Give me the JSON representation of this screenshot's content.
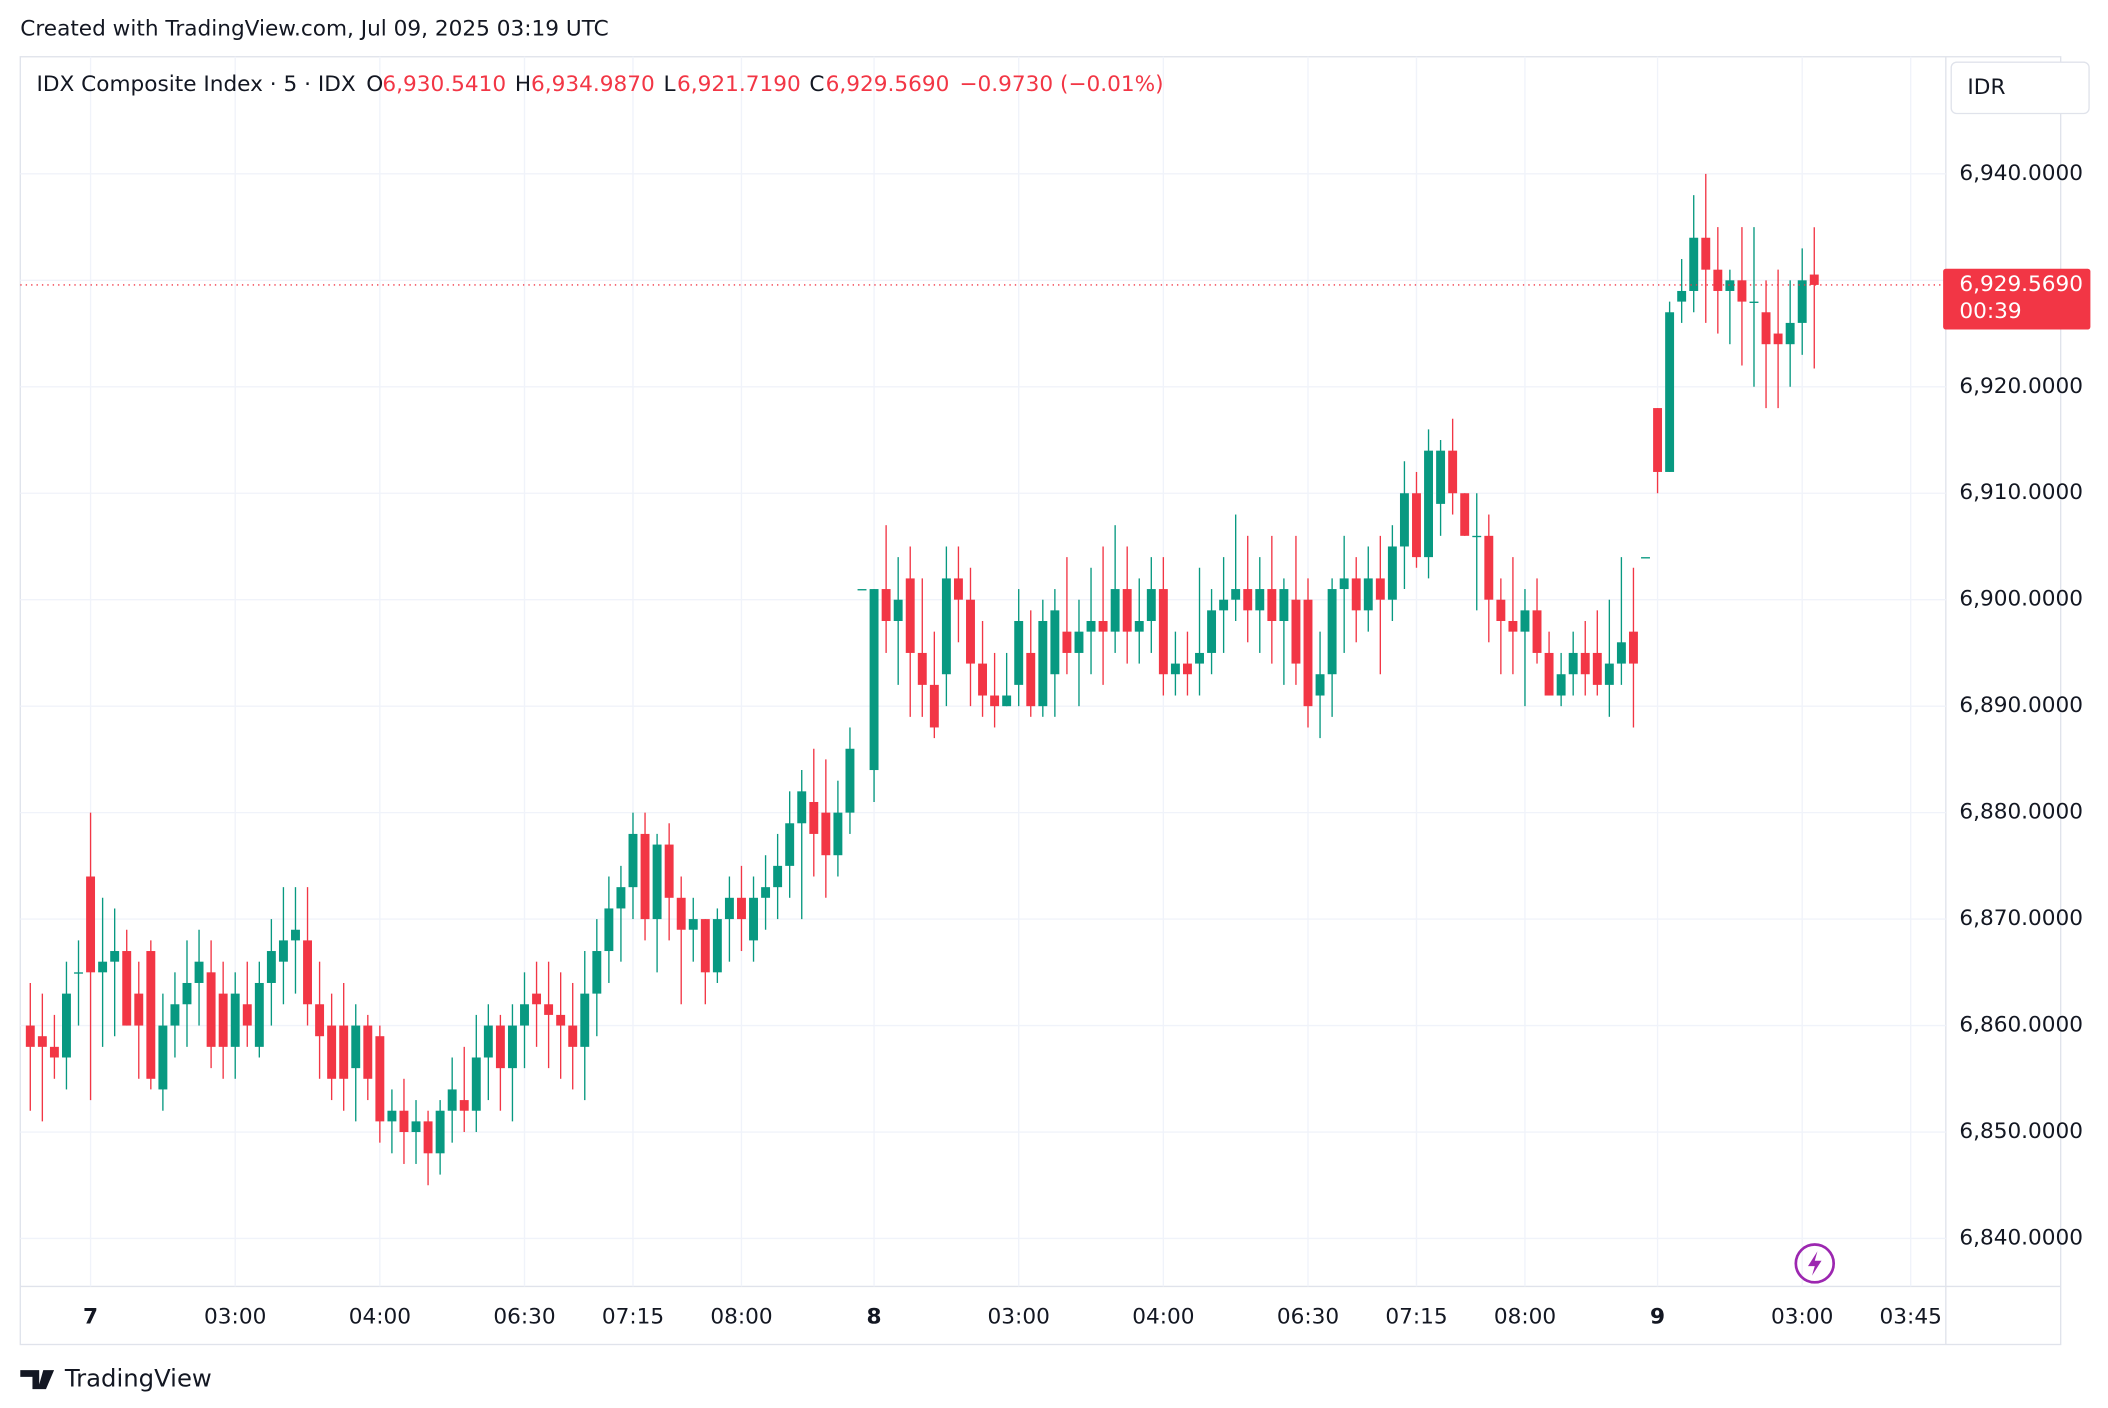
{
  "note": "Created with TradingView.com, Jul 09, 2025 03:19 UTC",
  "brand": "TradingView",
  "currency": "IDR",
  "chart_data": {
    "type": "candlestick",
    "title": "IDX Composite Index · 5 · IDX",
    "legend": {
      "o_label": "O",
      "open": "6,930.5410",
      "h_label": "H",
      "high": "6,934.9870",
      "l_label": "L",
      "low": "6,921.7190",
      "c_label": "C",
      "close": "6,929.5690",
      "change": "−0.9730 (−0.01%)"
    },
    "last_price_label": "6,929.5690",
    "countdown": "00:39",
    "up_color": "#089981",
    "down_color": "#f23645",
    "grid": true,
    "ylim": [
      6835.5,
      6951
    ],
    "yticks": [
      {
        "value": 6840,
        "label": "6,840.0000"
      },
      {
        "value": 6850,
        "label": "6,850.0000"
      },
      {
        "value": 6860,
        "label": "6,860.0000"
      },
      {
        "value": 6870,
        "label": "6,870.0000"
      },
      {
        "value": 6880,
        "label": "6,880.0000"
      },
      {
        "value": 6890,
        "label": "6,890.0000"
      },
      {
        "value": 6900,
        "label": "6,900.0000"
      },
      {
        "value": 6910,
        "label": "6,910.0000"
      },
      {
        "value": 6920,
        "label": "6,920.0000"
      },
      {
        "value": 6930,
        "label": "6,930.0000"
      },
      {
        "value": 6940,
        "label": "6,940.0000"
      }
    ],
    "categories": [
      null,
      null,
      null,
      null,
      null,
      "7",
      null,
      null,
      null,
      null,
      null,
      null,
      null,
      null,
      null,
      null,
      null,
      "03:00",
      null,
      null,
      null,
      null,
      null,
      null,
      null,
      null,
      null,
      null,
      null,
      "04:00",
      null,
      null,
      null,
      null,
      null,
      null,
      null,
      null,
      null,
      null,
      null,
      "06:30",
      null,
      null,
      null,
      null,
      null,
      null,
      null,
      null,
      "07:15",
      null,
      null,
      null,
      null,
      null,
      null,
      null,
      null,
      "08:00",
      null,
      null,
      null,
      null,
      null,
      null,
      null,
      null,
      null,
      null,
      "8",
      null,
      null,
      null,
      null,
      null,
      null,
      null,
      null,
      null,
      null,
      null,
      "03:00",
      null,
      null,
      null,
      null,
      null,
      null,
      null,
      null,
      null,
      null,
      null,
      "04:00",
      null,
      null,
      null,
      null,
      null,
      null,
      null,
      null,
      null,
      null,
      null,
      "06:30",
      null,
      null,
      null,
      null,
      null,
      null,
      null,
      null,
      "07:15",
      null,
      null,
      null,
      null,
      null,
      null,
      null,
      null,
      "08:00",
      null,
      null,
      null,
      null,
      null,
      null,
      null,
      null,
      null,
      null,
      "9",
      null,
      null,
      null,
      null,
      null,
      null,
      null,
      null,
      null,
      null,
      null,
      "03:00",
      null,
      null,
      null,
      null,
      null,
      null,
      null,
      null,
      "03:45"
    ],
    "open": [
      6860,
      6859,
      6858,
      6857,
      6865,
      6874,
      6865,
      6866,
      6867,
      6863,
      6867,
      6854,
      6860,
      6862,
      6864,
      6865,
      6863,
      6858,
      6862,
      6858,
      6864,
      6866,
      6868,
      6868,
      6862,
      6860,
      6860,
      6856,
      6860,
      6859,
      6851,
      6852,
      6850,
      6851,
      6848,
      6852,
      6853,
      6852,
      6857,
      6860,
      6856,
      6860,
      6863,
      6862,
      6861,
      6860,
      6858,
      6863,
      6867,
      6871,
      6873,
      6878,
      6870,
      6877,
      6872,
      6869,
      6870,
      6865,
      6870,
      6872,
      6868,
      6872,
      6873,
      6875,
      6879,
      6881,
      6880,
      6876,
      6880,
      6901,
      6884,
      6901,
      6898,
      6902,
      6895,
      6892,
      6893,
      6902,
      6900,
      6894,
      6891,
      6890,
      6892,
      6895,
      6890,
      6893,
      6897,
      6895,
      6897,
      6898,
      6897,
      6901,
      6897,
      6898,
      6901,
      6893,
      6894,
      6894,
      6895,
      6899,
      6900,
      6901,
      6899,
      6901,
      6898,
      6900,
      6900,
      6891,
      6893,
      6901,
      6902,
      6899,
      6902,
      6900,
      6905,
      6910,
      6904,
      6909,
      6914,
      6910,
      6906,
      6906,
      6900,
      6898,
      6897,
      6899,
      6895,
      6891,
      6893,
      6895,
      6895,
      6892,
      6894,
      6897,
      6904,
      6918,
      6912,
      6928,
      6929,
      6934,
      6931,
      6929,
      6930,
      6928,
      6927,
      6925,
      6924,
      6926,
      6930.541,
      null,
      null,
      null,
      null,
      null,
      null,
      null,
      null
    ],
    "high": [
      6864,
      6863,
      6861,
      6866,
      6868,
      6880,
      6872,
      6871,
      6869,
      6866,
      6868,
      6863,
      6865,
      6868,
      6869,
      6868,
      6866,
      6865,
      6866,
      6866,
      6870,
      6873,
      6873,
      6873,
      6866,
      6863,
      6864,
      6862,
      6861,
      6860,
      6854,
      6855,
      6853,
      6852,
      6853,
      6857,
      6858,
      6861,
      6862,
      6861,
      6862,
      6865,
      6866,
      6866,
      6865,
      6864,
      6867,
      6870,
      6874,
      6875,
      6880,
      6880,
      6878,
      6879,
      6874,
      6872,
      6870,
      6871,
      6874,
      6875,
      6874,
      6876,
      6878,
      6882,
      6884,
      6886,
      6885,
      6883,
      6888,
      6901,
      6901,
      6907,
      6904,
      6905,
      6902,
      6897,
      6905,
      6905,
      6903,
      6898,
      6895,
      6895,
      6901,
      6899,
      6900,
      6901,
      6904,
      6900,
      6903,
      6905,
      6907,
      6905,
      6902,
      6904,
      6904,
      6897,
      6897,
      6903,
      6901,
      6904,
      6908,
      6906,
      6904,
      6906,
      6902,
      6906,
      6902,
      6897,
      6902,
      6906,
      6904,
      6905,
      6906,
      6907,
      6913,
      6912,
      6916,
      6915,
      6917,
      6910,
      6910,
      6908,
      6902,
      6904,
      6901,
      6902,
      6897,
      6895,
      6897,
      6898,
      6899,
      6900,
      6904,
      6903,
      6904,
      6918,
      6928,
      6932,
      6938,
      6940,
      6935,
      6931,
      6935,
      6935,
      6930,
      6931,
      6930,
      6933,
      6934.987,
      null,
      null,
      null,
      null,
      null,
      null,
      null,
      null
    ],
    "low": [
      6852,
      6851,
      6855,
      6854,
      6860,
      6853,
      6858,
      6859,
      6860,
      6855,
      6854,
      6852,
      6857,
      6858,
      6860,
      6856,
      6855,
      6855,
      6858,
      6857,
      6860,
      6862,
      6863,
      6860,
      6855,
      6853,
      6852,
      6851,
      6853,
      6849,
      6848,
      6847,
      6847,
      6845,
      6846,
      6849,
      6850,
      6850,
      6853,
      6852,
      6851,
      6856,
      6858,
      6856,
      6855,
      6854,
      6853,
      6859,
      6864,
      6866,
      6870,
      6868,
      6865,
      6868,
      6862,
      6866,
      6862,
      6864,
      6866,
      6867,
      6866,
      6869,
      6870,
      6872,
      6870,
      6874,
      6872,
      6874,
      6878,
      6901,
      6881,
      6895,
      6892,
      6889,
      6889,
      6887,
      6890,
      6896,
      6890,
      6889,
      6888,
      6890,
      6890,
      6889,
      6889,
      6889,
      6893,
      6890,
      6893,
      6892,
      6895,
      6894,
      6894,
      6895,
      6891,
      6891,
      6891,
      6891,
      6893,
      6895,
      6898,
      6896,
      6895,
      6894,
      6892,
      6892,
      6888,
      6887,
      6889,
      6895,
      6896,
      6897,
      6893,
      6898,
      6901,
      6903,
      6902,
      6906,
      6908,
      6906,
      6899,
      6896,
      6893,
      6893,
      6890,
      6894,
      6891,
      6890,
      6891,
      6891,
      6891,
      6889,
      6892,
      6888,
      6904,
      6910,
      6912,
      6926,
      6927,
      6926,
      6925,
      6924,
      6922,
      6920,
      6918,
      6918,
      6920,
      6923,
      6921.719,
      null,
      null,
      null,
      null,
      null,
      null,
      null,
      null
    ],
    "close": [
      6858,
      6858,
      6857,
      6863,
      6865,
      6865,
      6866,
      6867,
      6860,
      6860,
      6855,
      6860,
      6862,
      6864,
      6866,
      6858,
      6858,
      6863,
      6860,
      6864,
      6867,
      6868,
      6869,
      6862,
      6859,
      6855,
      6855,
      6860,
      6855,
      6851,
      6852,
      6850,
      6851,
      6848,
      6852,
      6854,
      6852,
      6857,
      6860,
      6856,
      6860,
      6862,
      6862,
      6861,
      6860,
      6858,
      6863,
      6867,
      6871,
      6873,
      6878,
      6870,
      6877,
      6872,
      6869,
      6870,
      6865,
      6870,
      6872,
      6870,
      6872,
      6873,
      6875,
      6879,
      6882,
      6878,
      6876,
      6880,
      6886,
      6901,
      6901,
      6898,
      6900,
      6895,
      6892,
      6888,
      6902,
      6900,
      6894,
      6891,
      6890,
      6891,
      6898,
      6890,
      6898,
      6899,
      6895,
      6897,
      6898,
      6897,
      6901,
      6897,
      6898,
      6901,
      6893,
      6894,
      6893,
      6895,
      6899,
      6900,
      6901,
      6899,
      6901,
      6898,
      6901,
      6894,
      6890,
      6893,
      6901,
      6902,
      6899,
      6902,
      6900,
      6905,
      6910,
      6904,
      6914,
      6914,
      6910,
      6906,
      6906,
      6900,
      6898,
      6897,
      6899,
      6895,
      6891,
      6893,
      6895,
      6893,
      6892,
      6894,
      6896,
      6894,
      6904,
      6912,
      6927,
      6929,
      6934,
      6931,
      6929,
      6930,
      6928,
      6928,
      6924,
      6924,
      6926,
      6930,
      6929.569,
      null,
      null,
      null,
      null,
      null,
      null,
      null,
      null
    ]
  }
}
